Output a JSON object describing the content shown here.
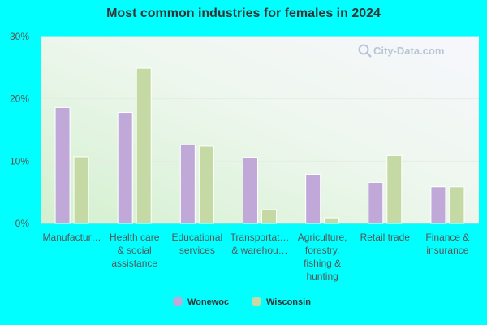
{
  "chart_data": {
    "type": "bar",
    "title": "Most common industries for females in 2024",
    "categories": [
      "Manufactur…",
      "Health care & social assistance",
      "Educational services",
      "Transportat… & warehou…",
      "Agriculture, forestry, fishing & hunting",
      "Retail trade",
      "Finance & insurance"
    ],
    "category_lines": [
      [
        "Manufactur…"
      ],
      [
        "Health care",
        "& social",
        "assistance"
      ],
      [
        "Educational",
        "services"
      ],
      [
        "Transportat…",
        "& warehou…"
      ],
      [
        "Agriculture,",
        "forestry,",
        "fishing &",
        "hunting"
      ],
      [
        "Retail trade"
      ],
      [
        "Finance &",
        "insurance"
      ]
    ],
    "series": [
      {
        "name": "Wonewoc",
        "color": "#c0a9d9",
        "values": [
          18.6,
          17.8,
          12.6,
          10.6,
          7.9,
          6.6,
          5.9
        ]
      },
      {
        "name": "Wisconsin",
        "color": "#c5d9a5",
        "values": [
          10.7,
          24.9,
          12.4,
          2.2,
          0.9,
          10.9,
          5.9
        ]
      }
    ],
    "y_ticks": [
      "0%",
      "10%",
      "20%",
      "30%"
    ],
    "ylim": [
      0,
      30
    ],
    "grid": true,
    "legend_position": "bottom"
  },
  "watermark": "City-Data.com"
}
